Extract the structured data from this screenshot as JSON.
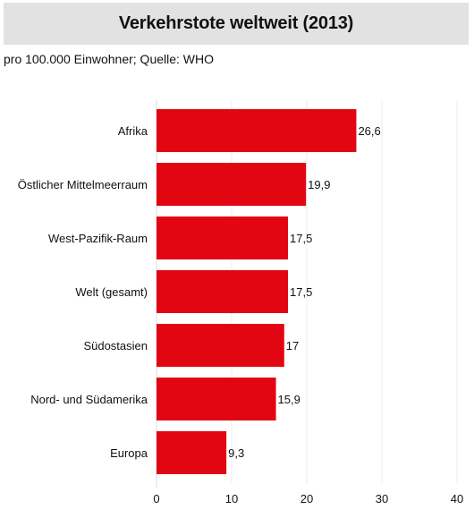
{
  "title": "Verkehrstote weltweit (2013)",
  "subtitle": "pro 100.000 Einwohner; Quelle: WHO",
  "colors": {
    "bar": "#e20613",
    "grid": "#ececec",
    "header_bg": "#e2e2e2"
  },
  "chart_data": {
    "type": "bar",
    "orientation": "horizontal",
    "title": "Verkehrstote weltweit (2013)",
    "subtitle": "pro 100.000 Einwohner; Quelle: WHO",
    "categories": [
      "Afrika",
      "Östlicher Mittelmeerraum",
      "West-Pazifik-Raum",
      "Welt (gesamt)",
      "Südostasien",
      "Nord- und Südamerika",
      "Europa"
    ],
    "values": [
      26.6,
      19.9,
      17.5,
      17.5,
      17,
      15.9,
      9.3
    ],
    "value_labels": [
      "26,6",
      "19,9",
      "17,5",
      "17,5",
      "17",
      "15,9",
      "9,3"
    ],
    "xlim": [
      0,
      40
    ],
    "xticks": [
      0,
      10,
      20,
      30,
      40
    ],
    "grid": true,
    "legend": false
  }
}
